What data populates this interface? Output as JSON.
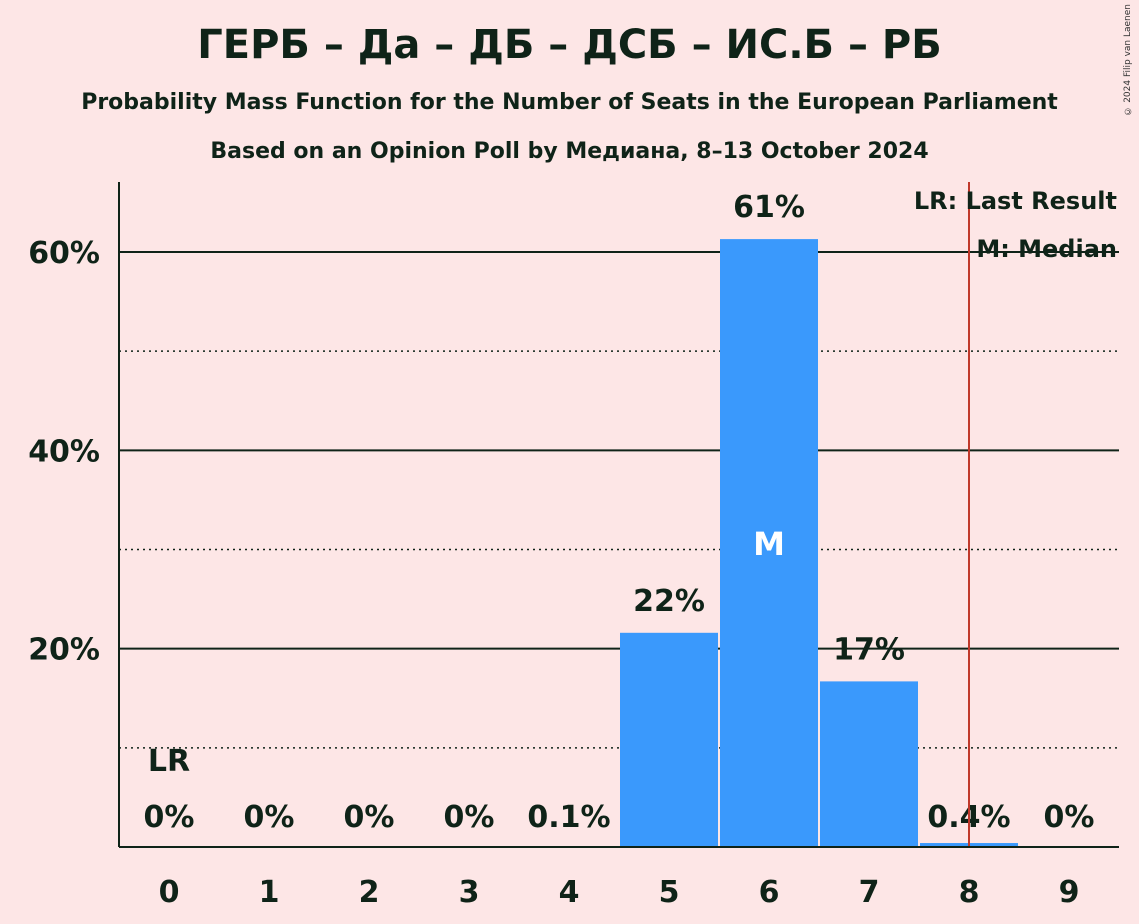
{
  "chart_data": {
    "type": "bar",
    "title": "ГЕРБ – Да – ДБ – ДСБ – ИС.Б – РБ",
    "subtitle": "Probability Mass Function for the Number of Seats in the European Parliament",
    "subtitle2": "Based on an Opinion Poll by Медиана, 8–13 October 2024",
    "copyright": "© 2024 Filip van Laenen",
    "categories": [
      "0",
      "1",
      "2",
      "3",
      "4",
      "5",
      "6",
      "7",
      "8",
      "9"
    ],
    "values": [
      0,
      0,
      0,
      0,
      0.1,
      21.6,
      61.3,
      16.7,
      0.4,
      0
    ],
    "value_labels": [
      "0%",
      "0%",
      "0%",
      "0%",
      "0.1%",
      "22%",
      "61%",
      "17%",
      "0.4%",
      "0%"
    ],
    "ylim": [
      0,
      67
    ],
    "yticks": [
      20,
      40,
      60
    ],
    "ytick_labels": [
      "20%",
      "40%",
      "60%"
    ],
    "minor_gridlines": [
      10,
      30,
      50
    ],
    "last_result_seats": 0,
    "last_result_label": "LR",
    "median_seats": 6,
    "median_label": "M",
    "majority_line_x": 8.5,
    "legend": {
      "lr": "LR: Last Result",
      "m": "M: Median",
      "position": "top-right"
    },
    "colors": {
      "bar": "#3a99fc",
      "background": "#fde6e6",
      "text": "#0f2318",
      "majority_line": "#c0392b"
    }
  }
}
